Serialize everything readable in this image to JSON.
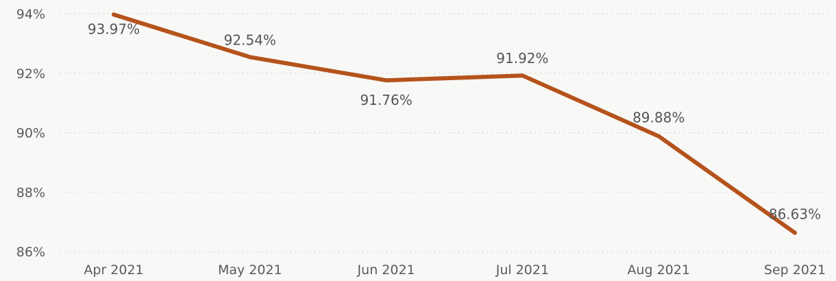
{
  "chart_data": {
    "type": "line",
    "categories": [
      "Apr 2021",
      "May 2021",
      "Jun 2021",
      "Jul 2021",
      "Aug 2021",
      "Sep 2021"
    ],
    "series": [
      {
        "values": [
          93.97,
          92.54,
          91.76,
          91.92,
          89.88,
          86.63
        ],
        "data_labels": [
          "93.97%",
          "92.54%",
          "91.76%",
          "91.92%",
          "89.88%",
          "86.63%"
        ],
        "color": "#b5531c"
      }
    ],
    "ylim": [
      86,
      94
    ],
    "yticks": [
      86,
      88,
      90,
      92,
      94
    ],
    "ytick_labels": [
      "86%",
      "88%",
      "90%",
      "92%",
      "94%"
    ],
    "grid": true,
    "legend": "none",
    "title": "",
    "xlabel": "",
    "ylabel": ""
  }
}
